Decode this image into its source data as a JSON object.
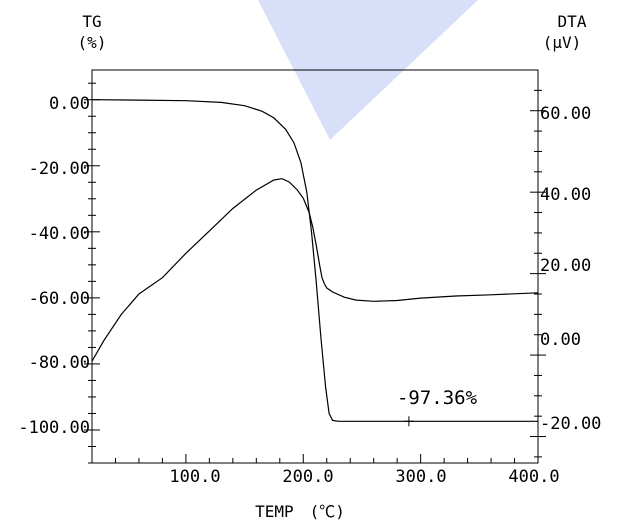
{
  "chart_data": {
    "type": "line",
    "title": "",
    "xlabel": "TEMP　(℃)",
    "x_ticks": [
      "100.0",
      "200.0",
      "300.0",
      "400.0"
    ],
    "xlim": [
      20,
      400
    ],
    "left_axis": {
      "label_line1": "TG",
      "label_line2": "(%)",
      "ticks": [
        "0.00",
        "-20.00",
        "-40.00",
        "-60.00",
        "-80.00",
        "-100.00"
      ],
      "ylim": [
        -110,
        9
      ]
    },
    "right_axis": {
      "label_line1": "DTA",
      "label_line2": "(μV)",
      "ticks": [
        "60.00",
        "40.00",
        "20.00",
        "0.00",
        "-20.00"
      ],
      "ylim": [
        -26.5,
        70
      ]
    },
    "annotation": {
      "text": "-97.36%",
      "x": 290,
      "y": -97.36
    },
    "series": [
      {
        "axis": "left",
        "color": "#000000",
        "x": [
          20,
          60,
          100,
          130,
          150,
          165,
          175,
          185,
          192,
          198,
          203,
          207,
          211,
          215,
          219,
          222,
          225,
          230,
          250,
          300,
          350,
          400
        ],
        "y": [
          0,
          -0.1,
          -0.3,
          -0.8,
          -1.8,
          -3.5,
          -5.5,
          -9,
          -13,
          -19,
          -28,
          -40,
          -55,
          -72,
          -87,
          -95,
          -97.1,
          -97.36,
          -97.36,
          -97.36,
          -97.36,
          -97.36
        ]
      },
      {
        "axis": "right",
        "color": "#000000",
        "x": [
          20,
          30,
          45,
          60,
          80,
          100,
          120,
          140,
          160,
          175,
          182,
          188,
          195,
          200,
          205,
          208,
          211,
          214,
          216,
          218,
          220,
          225,
          235,
          245,
          260,
          280,
          300,
          330,
          360,
          400
        ],
        "y": [
          -1.5,
          3.5,
          10,
          15,
          19,
          25,
          30.5,
          36,
          40.5,
          43,
          43.3,
          42.5,
          40.5,
          38.5,
          35,
          31.5,
          27,
          22,
          19,
          17.5,
          16.5,
          15.5,
          14.2,
          13.5,
          13.2,
          13.4,
          14,
          14.5,
          14.8,
          15.3
        ]
      }
    ]
  }
}
